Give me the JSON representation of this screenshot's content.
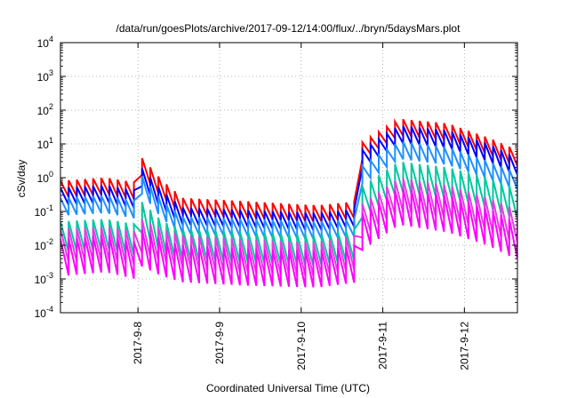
{
  "chart_data": {
    "type": "line",
    "title": "/data/run/goesPlots/archive/2017-09-12/14:00/flux/../bryn/5daysMars.plot",
    "xlabel": "Coordinated Universal Time (UTC)",
    "ylabel": "cSv/day",
    "yscale": "log",
    "ylim_exponents": [
      -4,
      4
    ],
    "xlim_days": [
      7.05,
      12.65
    ],
    "x_ticks": [
      {
        "label": "2017-9-8",
        "day": 8
      },
      {
        "label": "2017-9-9",
        "day": 9
      },
      {
        "label": "2017-9-10",
        "day": 10
      },
      {
        "label": "2017-9-11",
        "day": 11
      },
      {
        "label": "2017-9-12",
        "day": 12
      }
    ],
    "y_ticks": [
      {
        "base": "10",
        "exp": "4"
      },
      {
        "base": "10",
        "exp": "3"
      },
      {
        "base": "10",
        "exp": "2"
      },
      {
        "base": "10",
        "exp": "1"
      },
      {
        "base": "10",
        "exp": "0"
      },
      {
        "base": "10",
        "exp": "-1"
      },
      {
        "base": "10",
        "exp": "-2"
      },
      {
        "base": "10",
        "exp": "-3"
      },
      {
        "base": "10",
        "exp": "-4"
      }
    ],
    "grid": true,
    "legend": "none",
    "series": [
      {
        "color": "#ff0000",
        "orbit_period_days": 0.1,
        "peaks": [
          [
            7.05,
            0.8
          ],
          [
            7.6,
            1.0
          ],
          [
            8.0,
            0.7
          ],
          [
            8.04,
            4.0
          ],
          [
            8.3,
            0.8
          ],
          [
            8.55,
            0.25
          ],
          [
            9.3,
            0.2
          ],
          [
            10.2,
            0.15
          ],
          [
            10.7,
            0.2
          ],
          [
            10.72,
            10
          ],
          [
            11.2,
            55
          ],
          [
            11.8,
            40
          ],
          [
            12.3,
            15
          ],
          [
            12.62,
            7
          ]
        ],
        "trough_ratio": 0.32
      },
      {
        "color": "#0000ff",
        "orbit_period_days": 0.1,
        "peaks": [
          [
            7.05,
            0.5
          ],
          [
            7.6,
            0.6
          ],
          [
            8.0,
            0.4
          ],
          [
            8.04,
            2.0
          ],
          [
            8.3,
            0.4
          ],
          [
            8.55,
            0.13
          ],
          [
            9.3,
            0.11
          ],
          [
            10.2,
            0.09
          ],
          [
            10.7,
            0.12
          ],
          [
            10.72,
            6
          ],
          [
            11.2,
            35
          ],
          [
            11.8,
            25
          ],
          [
            12.3,
            10
          ],
          [
            12.62,
            4
          ]
        ],
        "trough_ratio": 0.3
      },
      {
        "color": "#1e90ff",
        "orbit_period_days": 0.1,
        "peaks": [
          [
            7.05,
            0.25
          ],
          [
            7.6,
            0.3
          ],
          [
            8.0,
            0.2
          ],
          [
            8.04,
            1.2
          ],
          [
            8.3,
            0.2
          ],
          [
            8.55,
            0.07
          ],
          [
            9.3,
            0.06
          ],
          [
            10.2,
            0.05
          ],
          [
            10.7,
            0.06
          ],
          [
            10.72,
            2
          ],
          [
            11.2,
            12
          ],
          [
            11.8,
            8
          ],
          [
            12.3,
            3
          ],
          [
            12.62,
            1.5
          ]
        ],
        "trough_ratio": 0.3
      },
      {
        "color": "#00c8a0",
        "orbit_period_days": 0.1,
        "peaks": [
          [
            7.05,
            0.05
          ],
          [
            7.6,
            0.06
          ],
          [
            8.0,
            0.04
          ],
          [
            8.04,
            0.2
          ],
          [
            8.3,
            0.05
          ],
          [
            8.55,
            0.03
          ],
          [
            9.3,
            0.025
          ],
          [
            10.2,
            0.02
          ],
          [
            10.7,
            0.03
          ],
          [
            10.72,
            0.5
          ],
          [
            11.2,
            3
          ],
          [
            11.8,
            2
          ],
          [
            12.3,
            1
          ],
          [
            12.62,
            0.5
          ]
        ],
        "trough_ratio": 0.12
      },
      {
        "color": "#e040e0",
        "orbit_period_days": 0.1,
        "peaks": [
          [
            7.05,
            0.03
          ],
          [
            7.6,
            0.035
          ],
          [
            8.0,
            0.025
          ],
          [
            8.04,
            0.06
          ],
          [
            8.3,
            0.03
          ],
          [
            8.55,
            0.02
          ],
          [
            9.3,
            0.015
          ],
          [
            10.2,
            0.012
          ],
          [
            10.7,
            0.02
          ],
          [
            10.72,
            0.15
          ],
          [
            11.2,
            1.0
          ],
          [
            11.8,
            0.6
          ],
          [
            12.3,
            0.25
          ],
          [
            12.62,
            0.12
          ]
        ],
        "trough_ratio": 0.1
      },
      {
        "color": "#ff00ff",
        "orbit_period_days": 0.1,
        "peaks": [
          [
            7.05,
            0.015
          ],
          [
            7.6,
            0.02
          ],
          [
            8.0,
            0.012
          ],
          [
            8.04,
            0.03
          ],
          [
            8.3,
            0.015
          ],
          [
            8.55,
            0.01
          ],
          [
            9.3,
            0.008
          ],
          [
            10.2,
            0.007
          ],
          [
            10.7,
            0.01
          ],
          [
            10.72,
            0.08
          ],
          [
            11.2,
            0.5
          ],
          [
            11.8,
            0.3
          ],
          [
            12.3,
            0.12
          ],
          [
            12.62,
            0.05
          ]
        ],
        "trough_ratio": 0.08
      }
    ]
  }
}
